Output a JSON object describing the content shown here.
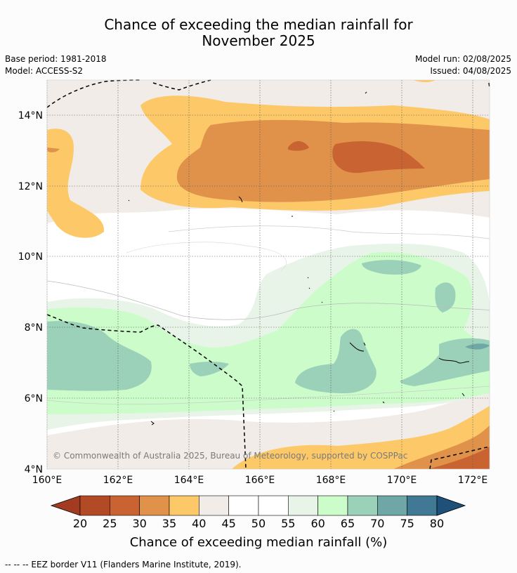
{
  "title": {
    "line1": "Chance of exceeding the median rainfall for",
    "line2": "November 2025"
  },
  "meta": {
    "base_period": "Base period: 1981-2018",
    "model": "Model: ACCESS-S2",
    "model_run": "Model run: 02/08/2025",
    "issued": "Issued: 04/08/2025"
  },
  "map": {
    "lon_labels": [
      "160°E",
      "162°E",
      "164°E",
      "166°E",
      "168°E",
      "170°E",
      "172°E"
    ],
    "lat_labels": [
      "14°N",
      "12°N",
      "10°N",
      "8°N",
      "6°N",
      "4°N"
    ],
    "copyright": "© Commonwealth of Australia 2025, Bureau of Meteorology, supported by COSPPac"
  },
  "colorbar": {
    "ticks": [
      "20",
      "25",
      "30",
      "35",
      "40",
      "45",
      "50",
      "55",
      "60",
      "65",
      "70",
      "75",
      "80"
    ],
    "colors": [
      "#a13b21",
      "#b24a26",
      "#c96432",
      "#e0924a",
      "#fdc968",
      "#f1ece7",
      "#ffffff",
      "#ffffff",
      "#e8f4e8",
      "#cbfcca",
      "#9bd0b9",
      "#6ea7a6",
      "#417893",
      "#1f507a"
    ],
    "title": "Chance of exceeding median rainfall (%)"
  },
  "footer": "--  --  -- EEZ border V11 (Flanders Marine Institute, 2019)."
}
